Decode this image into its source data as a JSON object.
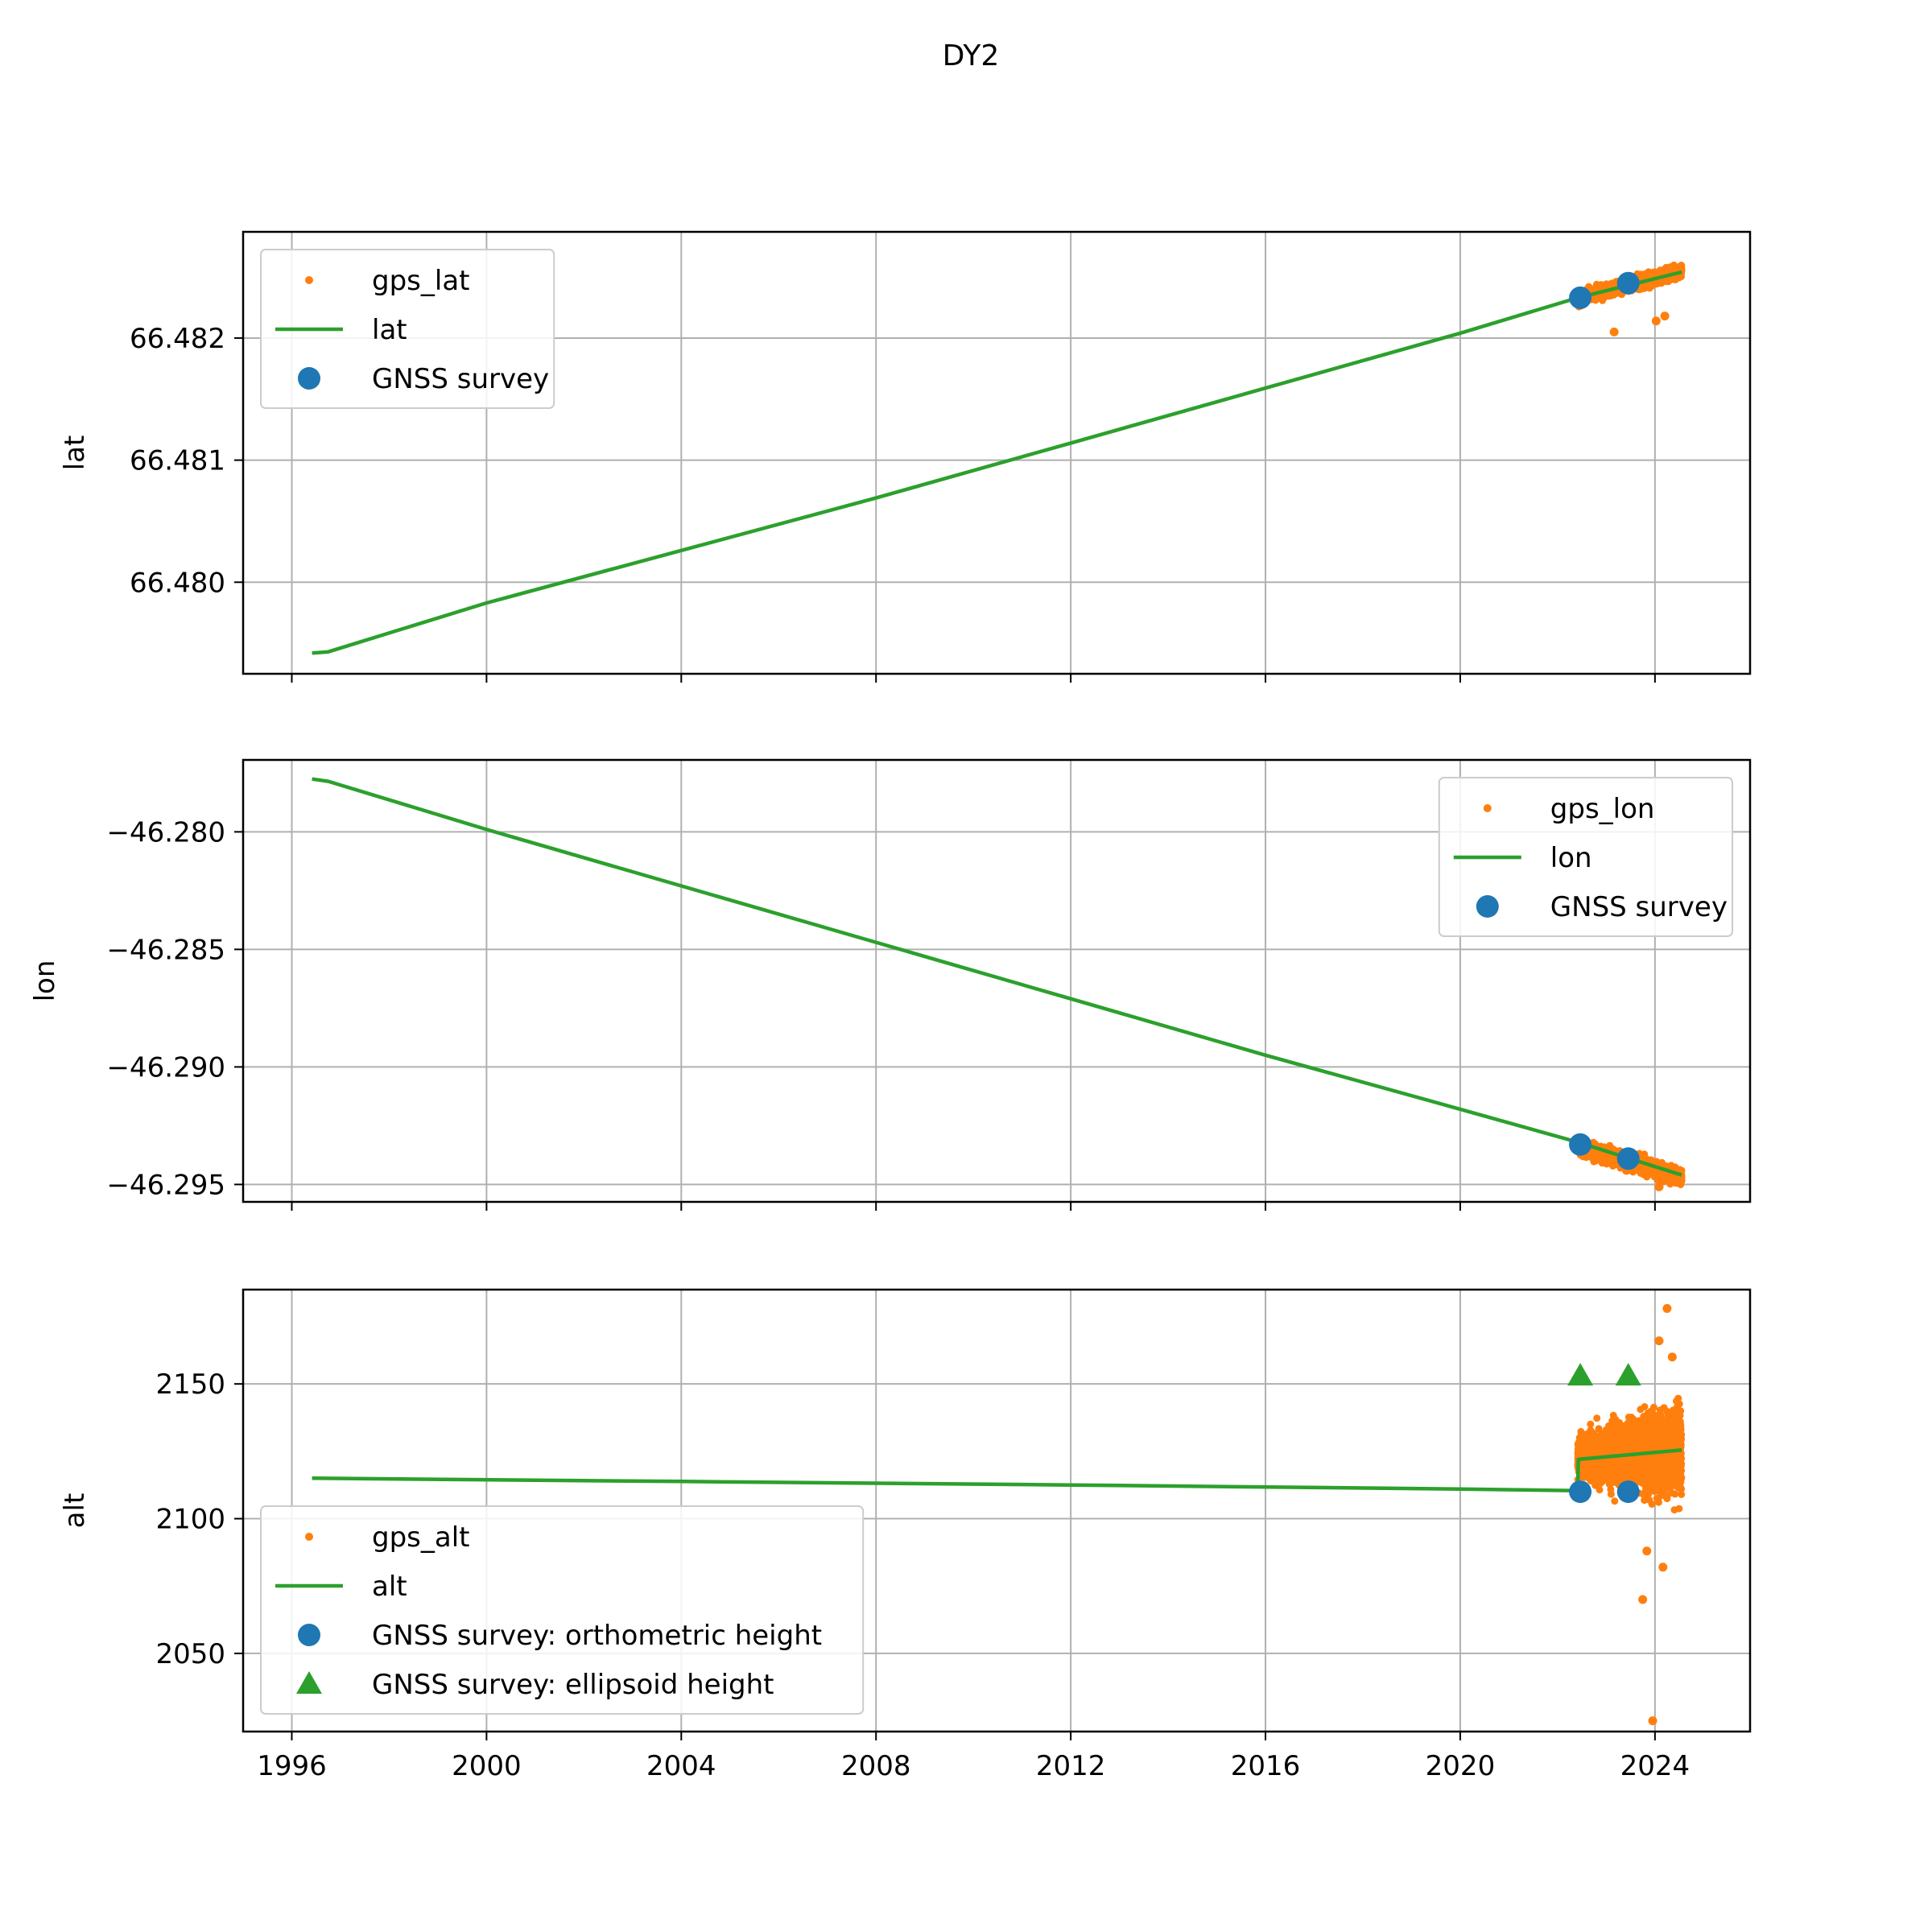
{
  "figure": {
    "title": "DY2",
    "colors": {
      "gps": "#ff7f0e",
      "model": "#2ca02c",
      "survey": "#1f77b4",
      "ellipsoid": "#2ca02c",
      "grid": "#b0b0b0"
    }
  },
  "chart_data": [
    {
      "type": "line",
      "xlabel": "",
      "ylabel": "lat",
      "x_scale": "date",
      "xlim": [
        "1995-01-01",
        "2025-12-15"
      ],
      "ylim": [
        66.47925,
        66.48287
      ],
      "yticks": [
        66.48,
        66.481,
        66.482
      ],
      "ytick_labels": [
        "66.480",
        "66.481",
        "66.482"
      ],
      "show_xtick_labels": false,
      "grid": true,
      "legend": {
        "placement": "upper left",
        "entries": [
          "gps_lat",
          "lat",
          "GNSS survey"
        ]
      },
      "series": [
        {
          "name": "gps_lat",
          "kind": "scatter-cloud",
          "x_range": [
            "2022-06-01",
            "2024-07-20"
          ],
          "trend": [
            [
              "2022-06-01",
              66.48233
            ],
            [
              "2024-07-20",
              66.48255
            ]
          ],
          "spread": 4e-05,
          "outliers": [
            [
              "2023-03-01",
              66.48205
            ],
            [
              "2024-01-10",
              66.48214
            ],
            [
              "2024-03-15",
              66.48218
            ]
          ]
        },
        {
          "name": "lat",
          "kind": "line",
          "points": [
            [
              "1996-06-01",
              66.47942
            ],
            [
              "1996-10-01",
              66.47943
            ],
            [
              "2000-01-01",
              66.47983
            ],
            [
              "2004-01-01",
              66.48026
            ],
            [
              "2008-01-01",
              66.48069
            ],
            [
              "2012-01-01",
              66.48114
            ],
            [
              "2016-01-01",
              66.48159
            ],
            [
              "2020-01-01",
              66.48204
            ],
            [
              "2022-06-01",
              66.48233
            ],
            [
              "2024-07-20",
              66.48254
            ]
          ]
        },
        {
          "name": "GNSS survey",
          "kind": "points",
          "marker": "circle",
          "points": [
            [
              "2022-06-20",
              66.48233
            ],
            [
              "2023-06-15",
              66.48245
            ]
          ]
        }
      ]
    },
    {
      "type": "line",
      "xlabel": "",
      "ylabel": "lon",
      "x_scale": "date",
      "xlim": [
        "1995-01-01",
        "2025-12-15"
      ],
      "ylim": [
        -46.29574,
        -46.27694
      ],
      "yticks": [
        -46.28,
        -46.285,
        -46.29,
        -46.295
      ],
      "ytick_labels": [
        "−46.280",
        "−46.285",
        "−46.290",
        "−46.295"
      ],
      "show_xtick_labels": false,
      "grid": true,
      "legend": {
        "placement": "upper right",
        "entries": [
          "gps_lon",
          "lon",
          "GNSS survey"
        ]
      },
      "series": [
        {
          "name": "gps_lon",
          "kind": "scatter-cloud",
          "x_range": [
            "2022-06-01",
            "2024-07-20"
          ],
          "trend": [
            [
              "2022-06-01",
              -46.2934
            ],
            [
              "2024-07-20",
              -46.2947
            ]
          ],
          "spread": 0.00025,
          "outliers": [
            [
              "2023-06-01",
              -46.2944
            ],
            [
              "2024-02-01",
              -46.2951
            ]
          ]
        },
        {
          "name": "lon",
          "kind": "line",
          "points": [
            [
              "1996-06-01",
              -46.27775
            ],
            [
              "1996-10-01",
              -46.27785
            ],
            [
              "2000-01-01",
              -46.2799
            ],
            [
              "2004-01-01",
              -46.2823
            ],
            [
              "2008-01-01",
              -46.2847
            ],
            [
              "2012-01-01",
              -46.2871
            ],
            [
              "2016-01-01",
              -46.2895
            ],
            [
              "2020-01-01",
              -46.2918
            ],
            [
              "2022-06-01",
              -46.2932
            ],
            [
              "2024-07-20",
              -46.2946
            ]
          ]
        },
        {
          "name": "GNSS survey",
          "kind": "points",
          "marker": "circle",
          "points": [
            [
              "2022-06-20",
              -46.2933
            ],
            [
              "2023-06-15",
              -46.2939
            ]
          ]
        }
      ]
    },
    {
      "type": "line",
      "xlabel": "",
      "ylabel": "alt",
      "x_scale": "date",
      "xlim": [
        "1995-01-01",
        "2025-12-15"
      ],
      "ylim": [
        2021,
        2185
      ],
      "yticks": [
        2050,
        2100,
        2150
      ],
      "ytick_labels": [
        "2050",
        "2100",
        "2150"
      ],
      "xticks": [
        "1996-01-01",
        "2000-01-01",
        "2004-01-01",
        "2008-01-01",
        "2012-01-01",
        "2016-01-01",
        "2020-01-01",
        "2024-01-01"
      ],
      "xtick_labels": [
        "1996",
        "2000",
        "2004",
        "2008",
        "2012",
        "2016",
        "2020",
        "2024"
      ],
      "show_xtick_labels": true,
      "grid": true,
      "legend": {
        "placement": "lower left",
        "entries": [
          "gps_alt",
          "alt",
          "GNSS survey: orthometric height",
          "GNSS survey: ellipsoid height"
        ]
      },
      "series": [
        {
          "name": "gps_alt",
          "kind": "scatter-cloud",
          "x_range": [
            "2022-06-01",
            "2024-07-20"
          ],
          "trend": [
            [
              "2022-06-01",
              2122
            ],
            [
              "2024-07-20",
              2125
            ]
          ],
          "spread": 10,
          "outliers": [
            [
              "2024-04-01",
              2178
            ],
            [
              "2024-02-01",
              2166
            ],
            [
              "2023-10-01",
              2070
            ],
            [
              "2024-03-01",
              2082
            ],
            [
              "2023-12-15",
              2025
            ],
            [
              "2024-05-10",
              2160
            ],
            [
              "2023-11-01",
              2088
            ]
          ]
        },
        {
          "name": "alt",
          "kind": "line",
          "points": [
            [
              "1996-06-01",
              2115.0
            ],
            [
              "2004-01-01",
              2113.8
            ],
            [
              "2012-01-01",
              2112.5
            ],
            [
              "2020-01-01",
              2111.0
            ],
            [
              "2022-06-01",
              2110.4
            ],
            [
              "2022-06-05",
              2122.0
            ],
            [
              "2024-07-20",
              2125.5
            ]
          ]
        },
        {
          "name": "GNSS survey: orthometric height",
          "kind": "points",
          "marker": "circle",
          "points": [
            [
              "2022-06-20",
              2110
            ],
            [
              "2023-06-15",
              2110
            ]
          ]
        },
        {
          "name": "GNSS survey: ellipsoid height",
          "kind": "points",
          "marker": "triangle",
          "points": [
            [
              "2022-06-20",
              2153
            ],
            [
              "2023-06-15",
              2153
            ]
          ]
        }
      ]
    }
  ]
}
